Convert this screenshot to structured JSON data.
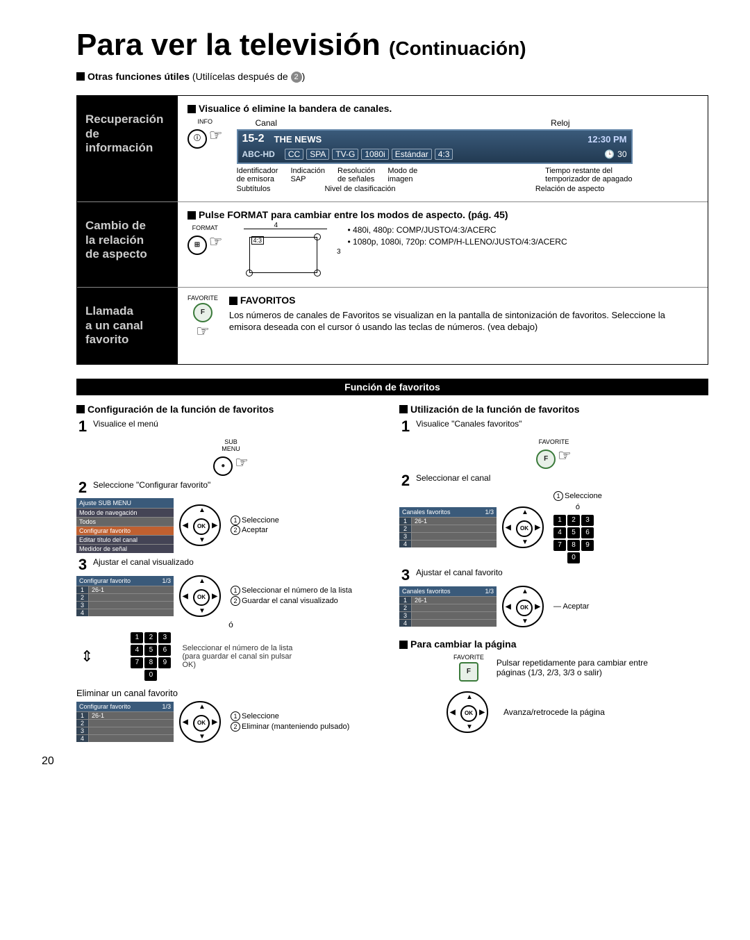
{
  "title_main": "Para ver la televisión",
  "title_cont": "(Continuación)",
  "otras_funciones": "Otras funciones útiles",
  "otras_funciones_light": " (Utilícelas después de ",
  "otras_funciones_num": "2",
  "section1": {
    "left": "Recuperación\nde\ninformación",
    "heading": "Visualice ó elimine la bandera de canales.",
    "btn_label": "INFO",
    "top_left": "Canal",
    "top_right": "Reloj",
    "banner": {
      "ch": "15-2",
      "prog": "THE NEWS",
      "time": "12:30 PM",
      "id": "ABC-HD",
      "cc": "CC",
      "spa": "SPA",
      "tvg": "TV-G",
      "res": "1080i",
      "mode": "Estándar",
      "ratio": "4:3",
      "timer": "30"
    },
    "below": {
      "c1a": "Identificador",
      "c1b": "de emisora",
      "c2a": "Indicación",
      "c2b": "SAP",
      "c3a": "Resolución",
      "c3b": "de señales",
      "c3c": "Modo de",
      "c3d": "imagen",
      "c4a": "Tiempo restante del",
      "c4b": "temporizador de apagado",
      "d1": "Subtítulos",
      "d2": "Nivel de clasificación",
      "d3": "Relación de aspecto"
    }
  },
  "section2": {
    "left": "Cambio de\nla relación\nde aspecto",
    "heading_a": "Pulse FORMAT para cambiar entre los modos de aspecto.",
    "heading_b": " (pág. 45)",
    "btn_label": "FORMAT",
    "w": "4",
    "h": "3",
    "lab43": "4:3",
    "bullet1": "• 480i, 480p:  COMP/JUSTO/4:3/ACERC",
    "bullet2": "• 1080p, 1080i, 720p:  COMP/H-LLENO/JUSTO/4:3/ACERC"
  },
  "section3": {
    "left": "Llamada\na un canal\nfavorito",
    "btn_label": "FAVORITE",
    "heading": "FAVORITOS",
    "body": "Los números de canales de Favoritos se visualizan en la pantalla de sintonización de favoritos. Seleccione la emisora deseada con el cursor ó usando las teclas de números. (vea debajo)"
  },
  "fav_bar": "Función de favoritos",
  "left_col": {
    "title": "Configuración de la función de favoritos",
    "s1": "Visualice el menú",
    "s1_btn": "SUB\nMENU",
    "s2": "Seleccione \"Configurar favorito\"",
    "menu1": {
      "hdr": "Ajuste SUB MENU",
      "items": [
        "Modo de navegación",
        "Todos",
        "Configurar favorito",
        "Editar título del canal",
        "Medidor de señal"
      ]
    },
    "s2_n1": "Seleccione",
    "s2_n2": "Aceptar",
    "s3": "Ajustar el canal visualizado",
    "menu2": {
      "hdr": "Configurar favorito",
      "page": "1/3",
      "rows": [
        [
          "1",
          "26-1"
        ],
        [
          "2",
          ""
        ],
        [
          "3",
          ""
        ],
        [
          "4",
          ""
        ]
      ]
    },
    "s3_n1": "Seleccionar el número de la lista",
    "s3_n2": "Guardar el canal visualizado",
    "or": "ó",
    "s3_alt": "Seleccionar el número de la lista (para guardar el canal sin pulsar OK)",
    "elim_title": "Eliminar un canal favorito",
    "elim_n1": "Seleccione",
    "elim_n2": "Eliminar (manteniendo pulsado)"
  },
  "right_col": {
    "title": "Utilización de la función de favoritos",
    "s1": "Visualice \"Canales favoritos\"",
    "s1_btn": "FAVORITE",
    "s2": "Seleccionar el canal",
    "menu": {
      "hdr": "Canales favoritos",
      "page": "1/3",
      "rows": [
        [
          "1",
          "26-1"
        ],
        [
          "2",
          ""
        ],
        [
          "3",
          ""
        ],
        [
          "4",
          ""
        ]
      ]
    },
    "s2_n1": "Seleccione",
    "or": "ó",
    "s3": "Ajustar el canal favorito",
    "s3_n": "Aceptar",
    "change_title": "Para cambiar la página",
    "change_btn": "FAVORITE",
    "change_txt": "Pulsar repetidamente para cambiar entre páginas (1/3, 2/3, 3/3 o salir)",
    "nav_txt": "Avanza/retrocede la página"
  },
  "page_number": "20"
}
